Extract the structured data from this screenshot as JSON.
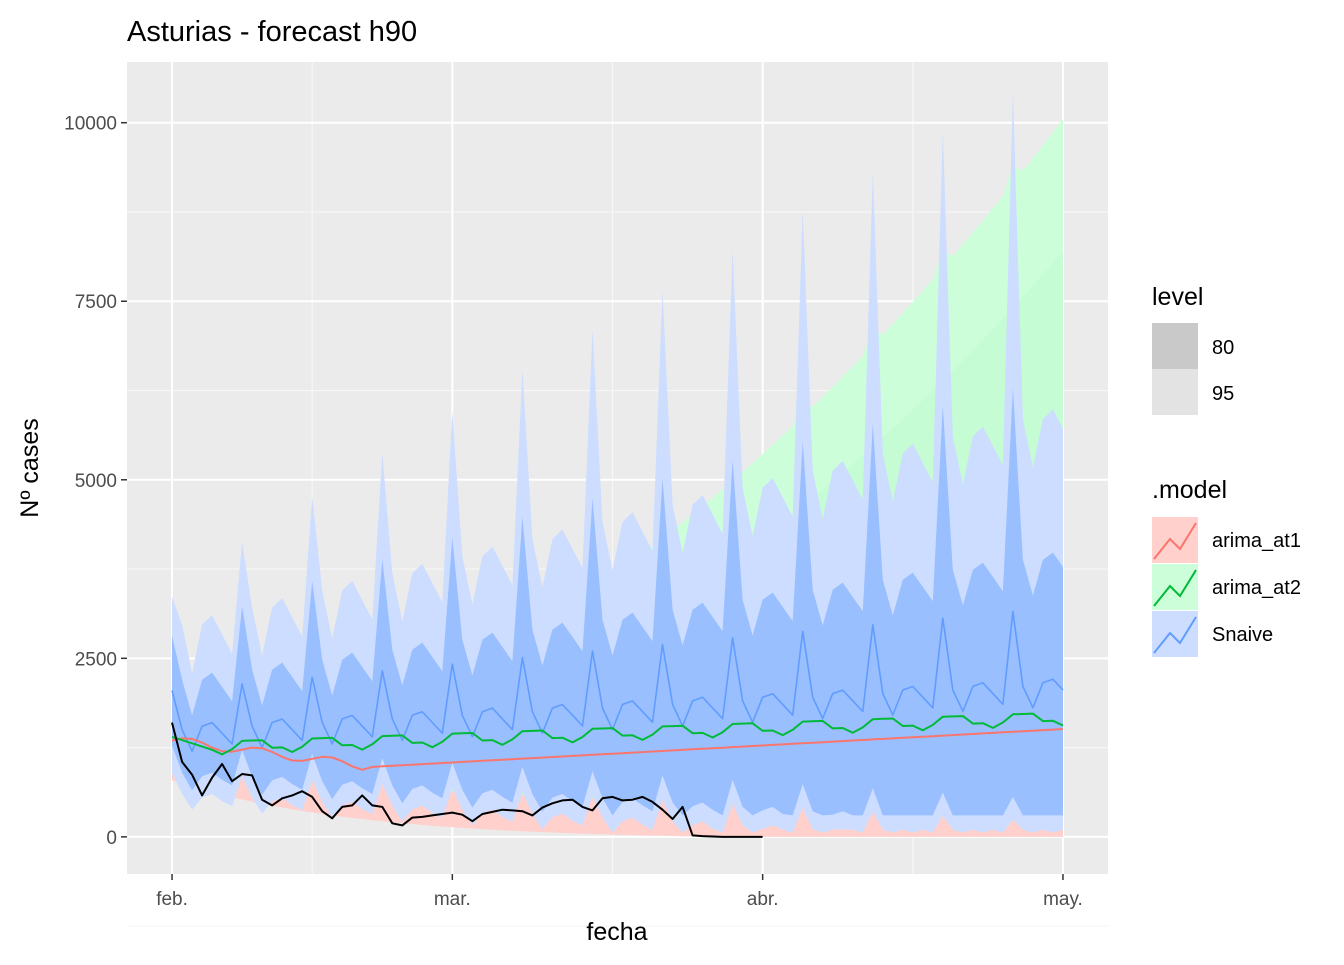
{
  "chart_data": {
    "type": "line",
    "title": "Asturias - forecast h90",
    "xlabel": "fecha",
    "ylabel": "Nº cases",
    "x_tick_labels": [
      "feb.",
      "mar.",
      "abr.",
      "may."
    ],
    "x_ticks_day": [
      0,
      28,
      59,
      89
    ],
    "x_minor_ticks_day": [
      14,
      44,
      74
    ],
    "xlim_day": [
      -4.5,
      93.5
    ],
    "y_ticks": [
      0,
      2500,
      5000,
      7500,
      10000
    ],
    "ylim": [
      -520,
      10850
    ],
    "grid": true,
    "legend_placement": "right",
    "legends": {
      "level": {
        "title": "level",
        "items": [
          "80",
          "95"
        ]
      },
      "model": {
        "title": ".model",
        "items": [
          {
            "label": "arima_at1",
            "color": "#F8766D",
            "fill": "#FFD0CC"
          },
          {
            "label": "arima_at2",
            "color": "#00BA38",
            "fill": "#CCFFD9"
          },
          {
            "label": "Snaive",
            "color": "#619CFF",
            "fill": "#CCDDFF"
          }
        ]
      }
    },
    "series": [
      {
        "name": "Snaive",
        "color": "#619CFF",
        "mean_weekly": [
          2050,
          1500,
          1200,
          1550,
          1600,
          1450,
          1300
        ],
        "mean_growth_per_week": 92,
        "lo80_weekly": [
          1280,
          900,
          650,
          850,
          900,
          800,
          720
        ],
        "hi80_weekly": [
          2820,
          2200,
          1700,
          2200,
          2300,
          2100,
          1900
        ],
        "peak_80_series": [
          2820,
          3230,
          3580,
          3890,
          4190,
          4480,
          4740,
          5020,
          5280,
          5540,
          5780,
          6040,
          6280,
          5020
        ],
        "peak_95_series": [
          3360,
          4130,
          4760,
          5380,
          5960,
          6540,
          7100,
          7660,
          8220,
          8780,
          9320,
          9880,
          10420,
          8540
        ],
        "lo95_weekly": [
          900,
          600,
          380,
          550,
          600,
          500,
          430
        ]
      },
      {
        "name": "arima_at1",
        "color": "#F8766D",
        "mean_start": 1350,
        "mean_min": 980,
        "mean_end": 1510,
        "lo80_start": 900,
        "lo95_start": 830
      },
      {
        "name": "arima_at2",
        "color": "#00BA38",
        "mean_start": 1400,
        "mean_end": 1630,
        "hi95_end": 10050,
        "hi80_end": 8200
      },
      {
        "name": "observed",
        "color": "#000000",
        "x_day": [
          0,
          1,
          2,
          3,
          4,
          5,
          6,
          7,
          8,
          9,
          10,
          11,
          12,
          13,
          14,
          15,
          16,
          17,
          18,
          19,
          20,
          21,
          22,
          23,
          24,
          25,
          26,
          27,
          28,
          29,
          30,
          31,
          32,
          33,
          34,
          35,
          36,
          37,
          38,
          39,
          40,
          41,
          42,
          43,
          44,
          45,
          46,
          47,
          48,
          49,
          50,
          51,
          52,
          53,
          54,
          55,
          56,
          57,
          58,
          59
        ],
        "values": [
          1600,
          1050,
          870,
          580,
          830,
          1020,
          780,
          880,
          860,
          520,
          440,
          540,
          580,
          640,
          560,
          360,
          260,
          420,
          440,
          580,
          440,
          420,
          190,
          160,
          270,
          280,
          300,
          320,
          340,
          310,
          220,
          320,
          350,
          380,
          370,
          360,
          300,
          410,
          470,
          510,
          520,
          420,
          370,
          540,
          560,
          510,
          520,
          560,
          490,
          380,
          250,
          420,
          20,
          10,
          5,
          0,
          0,
          0,
          0,
          0
        ]
      }
    ]
  }
}
